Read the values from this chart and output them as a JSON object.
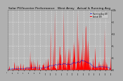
{
  "title": "Solar PV/Inverter Performance   West Array   Actual & Running Avg",
  "title_fontsize": 3.2,
  "bg_color": "#b0b0b0",
  "plot_bg_color": "#b8b8b8",
  "grid_color": "#ffffff",
  "bar_color": "#ff0000",
  "avg_color": "#0000cc",
  "ylim": [
    0,
    2500
  ],
  "ytick_vals": [
    0,
    500,
    1000,
    1500,
    2000,
    2500
  ],
  "ytick_labels": [
    "0",
    ".5",
    "1.",
    "1.5",
    "2.",
    "2.5k"
  ],
  "n_points": 300,
  "legend_labels": [
    "Running Avg kW",
    "Actual kW"
  ],
  "legend_colors": [
    "#0000cc",
    "#ff0000"
  ],
  "seed": 77
}
